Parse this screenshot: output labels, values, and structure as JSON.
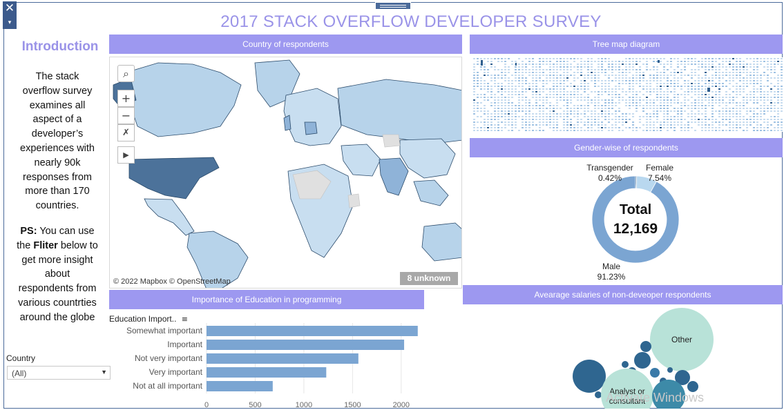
{
  "window": {
    "close_glyph": "✕",
    "menu_glyph": "▾"
  },
  "title": "2017 STACK OVERFLOW DEVELOPER SURVEY",
  "introduction": {
    "heading": "Introduction",
    "lines": [
      "The stack",
      "overflow survey",
      "examines all",
      "aspect of a",
      "developer’s",
      "experiences with",
      "nearly 90k",
      "responses from",
      "more than 170",
      "countries."
    ],
    "ps_label": "PS:",
    "ps_line1_rest": " You can use",
    "ps_line2_pre": "the ",
    "ps_filter_word": "Fliter",
    "ps_line2_post": " below to",
    "ps_lines": [
      "get more insight",
      "about",
      "respondents from",
      "various countrties",
      "around the globe"
    ]
  },
  "filter": {
    "label": "Country",
    "value": "(All)"
  },
  "map": {
    "banner": "Country of respondents",
    "credit": "© 2022 Mapbox © OpenStreetMap",
    "unknown": "8 unknown",
    "tools": {
      "search": "⌕",
      "zoom_in": "+",
      "zoom_out": "−",
      "select": "✗",
      "expand": "▶"
    }
  },
  "treemap": {
    "banner": "Tree map diagram"
  },
  "gender": {
    "banner": "Gender-wise of respondents",
    "total_label": "Total",
    "total_value": "12,169",
    "segments": [
      {
        "name": "Male",
        "pct": "91.23%",
        "value": 91.23,
        "color": "#7ba5d2"
      },
      {
        "name": "Female",
        "pct": "7.54%",
        "value": 7.54,
        "color": "#b9d8ef"
      },
      {
        "name": "Transgender",
        "pct": "0.42%",
        "value": 0.42,
        "color": "#2f5e8e"
      }
    ]
  },
  "education": {
    "banner": "Importance  of Education in programming",
    "header": "Education Import..",
    "sort_icon": "≡"
  },
  "salaries": {
    "banner": "Avearage salaries of non-deveoper respondents",
    "bubble_other": "Other",
    "bubble_analyst": "Analyst or consultant"
  },
  "watermark": "Activate Windows",
  "chart_data": [
    {
      "type": "bar",
      "orientation": "horizontal",
      "title": "Importance  of Education in programming",
      "categories": [
        "Somewhat important",
        "Important",
        "Not very important",
        "Very important",
        "Not at all important"
      ],
      "values": [
        2170,
        2030,
        1560,
        1230,
        680
      ],
      "xlim": [
        0,
        2200
      ],
      "xticks": [
        0,
        500,
        1000,
        1500,
        2000
      ],
      "color": "#7ba5d2",
      "grid": true
    },
    {
      "type": "pie",
      "title": "Gender-wise of respondents",
      "categories": [
        "Male",
        "Female",
        "Transgender"
      ],
      "values": [
        91.23,
        7.54,
        0.42
      ]
    }
  ]
}
